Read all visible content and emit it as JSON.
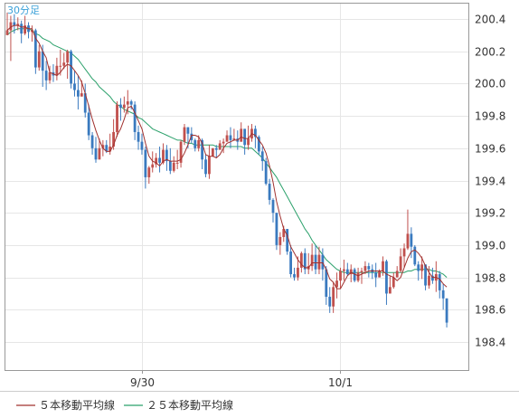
{
  "timeframe_label": "30分足",
  "colors": {
    "up": "#c0504d",
    "down": "#3a7abf",
    "ma5": "#a0312f",
    "ma25": "#2aa06a",
    "grid": "#e6e6e6",
    "frame": "#999999",
    "timeframe": "#3aa0d8"
  },
  "legend": [
    {
      "label": "５本移動平均線",
      "color": "#a0312f"
    },
    {
      "label": "２５本移動平均線",
      "color": "#2aa06a"
    }
  ],
  "chart_data": {
    "type": "candlestick",
    "y_axis": {
      "position": "right",
      "ticks": [
        "200.4",
        "200.2",
        "200.0",
        "199.8",
        "199.6",
        "199.4",
        "199.2",
        "199.0",
        "198.8",
        "198.6",
        "198.4"
      ],
      "range": [
        198.28,
        200.48
      ]
    },
    "x_axis": {
      "ticks": [
        {
          "label": "9/30",
          "bar_index": 38
        },
        {
          "label": "10/1",
          "bar_index": 94
        }
      ]
    },
    "grid": true,
    "legend_position": "bottom-left",
    "bar_count": 130,
    "candles": [
      [
        200.3,
        200.33,
        200.44,
        200.31
      ],
      [
        200.33,
        200.38,
        200.42,
        200.14
      ],
      [
        200.38,
        200.36,
        200.43,
        200.31
      ],
      [
        200.36,
        200.37,
        200.41,
        200.33
      ],
      [
        200.37,
        200.31,
        200.39,
        200.25
      ],
      [
        200.31,
        200.36,
        200.42,
        200.3
      ],
      [
        200.36,
        200.32,
        200.38,
        200.28
      ],
      [
        200.32,
        200.33,
        200.36,
        200.26
      ],
      [
        200.33,
        200.1,
        200.34,
        200.06
      ],
      [
        200.1,
        200.2,
        200.24,
        200.08
      ],
      [
        200.2,
        200.08,
        200.24,
        199.98
      ],
      [
        200.08,
        200.02,
        200.14,
        199.96
      ],
      [
        200.02,
        200.07,
        200.11,
        200.0
      ],
      [
        200.07,
        200.05,
        200.12,
        200.01
      ],
      [
        200.05,
        200.11,
        200.16,
        200.02
      ],
      [
        200.11,
        200.11,
        200.21,
        200.05
      ],
      [
        200.11,
        200.13,
        200.19,
        200.09
      ],
      [
        200.13,
        200.2,
        200.21,
        200.03
      ],
      [
        200.2,
        200.0,
        200.21,
        199.97
      ],
      [
        200.0,
        199.96,
        200.08,
        199.92
      ],
      [
        199.96,
        199.92,
        200.05,
        199.84
      ],
      [
        199.92,
        199.94,
        200.02,
        199.92
      ],
      [
        199.94,
        199.82,
        200.0,
        199.79
      ],
      [
        199.82,
        199.68,
        199.87,
        199.65
      ],
      [
        199.68,
        199.6,
        199.7,
        199.56
      ],
      [
        199.6,
        199.53,
        199.67,
        199.51
      ],
      [
        199.53,
        199.6,
        199.66,
        199.53
      ],
      [
        199.6,
        199.62,
        199.65,
        199.55
      ],
      [
        199.62,
        199.58,
        199.65,
        199.57
      ],
      [
        199.58,
        199.61,
        199.69,
        199.56
      ],
      [
        199.61,
        199.7,
        199.78,
        199.59
      ],
      [
        199.7,
        199.87,
        199.89,
        199.67
      ],
      [
        199.87,
        199.85,
        199.91,
        199.77
      ],
      [
        199.85,
        199.87,
        199.92,
        199.82
      ],
      [
        199.87,
        199.89,
        199.96,
        199.81
      ],
      [
        199.89,
        199.87,
        199.9,
        199.84
      ],
      [
        199.87,
        199.7,
        199.89,
        199.65
      ],
      [
        199.7,
        199.64,
        199.74,
        199.59
      ],
      [
        199.64,
        199.59,
        199.69,
        199.56
      ],
      [
        199.59,
        199.42,
        199.61,
        199.35
      ],
      [
        199.42,
        199.48,
        199.49,
        199.38
      ],
      [
        199.48,
        199.5,
        199.58,
        199.45
      ],
      [
        199.5,
        199.54,
        199.57,
        199.48
      ],
      [
        199.54,
        199.51,
        199.61,
        199.45
      ],
      [
        199.51,
        199.59,
        199.63,
        199.5
      ],
      [
        199.59,
        199.52,
        199.62,
        199.46
      ],
      [
        199.52,
        199.46,
        199.6,
        199.44
      ],
      [
        199.46,
        199.51,
        199.55,
        199.45
      ],
      [
        199.51,
        199.51,
        199.59,
        199.47
      ],
      [
        199.51,
        199.64,
        199.65,
        199.48
      ],
      [
        199.64,
        199.73,
        199.75,
        199.62
      ],
      [
        199.73,
        199.69,
        199.73,
        199.6
      ],
      [
        199.69,
        199.65,
        199.73,
        199.63
      ],
      [
        199.65,
        199.6,
        199.66,
        199.58
      ],
      [
        199.6,
        199.65,
        199.68,
        199.58
      ],
      [
        199.65,
        199.53,
        199.66,
        199.47
      ],
      [
        199.53,
        199.44,
        199.56,
        199.42
      ],
      [
        199.44,
        199.55,
        199.62,
        199.41
      ],
      [
        199.55,
        199.6,
        199.6,
        199.55
      ],
      [
        199.6,
        199.59,
        199.62,
        199.54
      ],
      [
        199.59,
        199.63,
        199.65,
        199.59
      ],
      [
        199.63,
        199.64,
        199.66,
        199.57
      ],
      [
        199.64,
        199.68,
        199.71,
        199.64
      ],
      [
        199.68,
        199.65,
        199.73,
        199.6
      ],
      [
        199.65,
        199.66,
        199.72,
        199.65
      ],
      [
        199.66,
        199.64,
        199.71,
        199.59
      ],
      [
        199.64,
        199.72,
        199.76,
        199.64
      ],
      [
        199.72,
        199.62,
        199.72,
        199.56
      ],
      [
        199.62,
        199.66,
        199.74,
        199.59
      ],
      [
        199.66,
        199.72,
        199.75,
        199.64
      ],
      [
        199.72,
        199.67,
        199.74,
        199.6
      ],
      [
        199.67,
        199.58,
        199.68,
        199.56
      ],
      [
        199.58,
        199.52,
        199.61,
        199.46
      ],
      [
        199.52,
        199.38,
        199.54,
        199.37
      ],
      [
        199.38,
        199.28,
        199.41,
        199.25
      ],
      [
        199.28,
        199.2,
        199.29,
        199.14
      ],
      [
        199.2,
        199.0,
        199.2,
        198.97
      ],
      [
        199.0,
        199.05,
        199.08,
        198.94
      ],
      [
        199.05,
        199.1,
        199.12,
        199.02
      ],
      [
        199.1,
        198.96,
        199.1,
        198.94
      ],
      [
        198.96,
        198.82,
        199.0,
        198.8
      ],
      [
        198.82,
        198.8,
        198.86,
        198.78
      ],
      [
        198.8,
        198.86,
        198.93,
        198.78
      ],
      [
        198.86,
        198.95,
        198.96,
        198.83
      ],
      [
        198.95,
        198.85,
        198.98,
        198.82
      ],
      [
        198.85,
        198.87,
        198.95,
        198.82
      ],
      [
        198.87,
        198.94,
        199.01,
        198.84
      ],
      [
        198.94,
        198.85,
        199.0,
        198.82
      ],
      [
        198.85,
        198.94,
        198.99,
        198.82
      ],
      [
        198.94,
        198.85,
        198.98,
        198.78
      ],
      [
        198.85,
        198.68,
        198.87,
        198.63
      ],
      [
        198.68,
        198.62,
        198.74,
        198.58
      ],
      [
        198.62,
        198.74,
        198.77,
        198.58
      ],
      [
        198.74,
        198.78,
        198.83,
        198.67
      ],
      [
        198.78,
        198.84,
        198.86,
        198.73
      ],
      [
        198.84,
        198.85,
        198.91,
        198.78
      ],
      [
        198.85,
        198.82,
        198.89,
        198.81
      ],
      [
        198.82,
        198.85,
        198.88,
        198.77
      ],
      [
        198.85,
        198.78,
        198.86,
        198.77
      ],
      [
        198.78,
        198.83,
        198.86,
        198.77
      ],
      [
        198.83,
        198.84,
        198.86,
        198.76
      ],
      [
        198.84,
        198.87,
        198.9,
        198.82
      ],
      [
        198.87,
        198.85,
        198.89,
        198.8
      ],
      [
        198.85,
        198.83,
        198.88,
        198.79
      ],
      [
        198.83,
        198.8,
        198.89,
        198.74
      ],
      [
        198.8,
        198.84,
        198.85,
        198.8
      ],
      [
        198.84,
        198.9,
        198.93,
        198.81
      ],
      [
        198.9,
        198.7,
        198.91,
        198.63
      ],
      [
        198.7,
        198.74,
        198.81,
        198.7
      ],
      [
        198.74,
        198.8,
        198.83,
        198.73
      ],
      [
        198.8,
        198.84,
        198.87,
        198.8
      ],
      [
        198.84,
        198.93,
        198.98,
        198.83
      ],
      [
        198.93,
        198.98,
        199.01,
        198.86
      ],
      [
        198.98,
        199.07,
        199.22,
        198.97
      ],
      [
        199.07,
        198.99,
        199.11,
        198.92
      ],
      [
        198.99,
        198.88,
        199.0,
        198.87
      ],
      [
        198.88,
        198.84,
        198.9,
        198.78
      ],
      [
        198.84,
        198.88,
        198.93,
        198.79
      ],
      [
        198.88,
        198.75,
        198.88,
        198.72
      ],
      [
        198.75,
        198.81,
        198.87,
        198.73
      ],
      [
        198.81,
        198.78,
        198.86,
        198.76
      ],
      [
        198.78,
        198.82,
        198.9,
        198.71
      ],
      [
        198.82,
        198.72,
        198.84,
        198.67
      ],
      [
        198.72,
        198.67,
        198.76,
        198.6
      ],
      [
        198.67,
        198.52,
        198.67,
        198.49
      ]
    ],
    "ma5": [
      200.33,
      200.35,
      200.36,
      200.36,
      200.35,
      200.35,
      200.34,
      200.34,
      200.28,
      200.25,
      200.2,
      200.16,
      200.07,
      200.06,
      200.05,
      200.07,
      200.1,
      200.12,
      200.11,
      200.08,
      200.05,
      200.01,
      199.94,
      199.86,
      199.78,
      199.71,
      199.65,
      199.6,
      199.58,
      199.58,
      199.62,
      199.68,
      199.72,
      199.78,
      199.85,
      199.86,
      199.82,
      199.77,
      199.72,
      199.63,
      199.55,
      199.52,
      199.51,
      199.49,
      199.52,
      199.53,
      199.52,
      199.52,
      199.52,
      199.53,
      199.57,
      199.62,
      199.68,
      199.68,
      199.67,
      199.63,
      199.56,
      199.55,
      199.55,
      199.54,
      199.56,
      199.6,
      199.63,
      199.64,
      199.65,
      199.65,
      199.67,
      199.66,
      199.66,
      199.69,
      199.68,
      199.65,
      199.62,
      199.57,
      199.49,
      199.39,
      199.27,
      199.18,
      199.1,
      199.06,
      198.99,
      198.95,
      198.91,
      198.88,
      198.86,
      198.86,
      198.89,
      198.89,
      198.89,
      198.89,
      198.85,
      198.79,
      198.77,
      198.73,
      198.73,
      198.77,
      198.81,
      198.83,
      198.82,
      198.81,
      198.82,
      198.83,
      198.84,
      198.84,
      198.84,
      198.84,
      198.84,
      198.82,
      198.81,
      198.8,
      198.78,
      198.8,
      198.86,
      198.92,
      198.96,
      198.97,
      198.95,
      198.92,
      198.87,
      198.83,
      198.8,
      198.8,
      198.79,
      198.76,
      198.74
    ],
    "ma25": [
      200.3,
      200.32,
      200.33,
      200.34,
      200.34,
      200.34,
      200.34,
      200.33,
      200.31,
      200.3,
      200.28,
      200.27,
      200.26,
      200.24,
      200.23,
      200.22,
      200.21,
      200.2,
      200.19,
      200.17,
      200.15,
      200.12,
      200.09,
      200.06,
      200.03,
      200.01,
      199.98,
      199.96,
      199.94,
      199.92,
      199.89,
      199.87,
      199.86,
      199.84,
      199.83,
      199.82,
      199.81,
      199.79,
      199.78,
      199.76,
      199.74,
      199.72,
      199.71,
      199.7,
      199.69,
      199.68,
      199.67,
      199.66,
      199.65,
      199.65,
      199.64,
      199.63,
      199.63,
      199.62,
      199.62,
      199.62,
      199.62,
      199.62,
      199.62,
      199.61,
      199.61,
      199.61,
      199.61,
      199.61,
      199.61,
      199.61,
      199.61,
      199.6,
      199.6,
      199.6,
      199.58,
      199.56,
      199.54,
      199.51,
      199.48,
      199.45,
      199.42,
      199.38,
      199.34,
      199.3,
      199.26,
      199.22,
      199.18,
      199.14,
      199.1,
      199.07,
      199.03,
      199.0,
      198.97,
      198.94,
      198.91,
      198.89,
      198.87,
      198.85,
      198.84,
      198.83,
      198.83,
      198.83,
      198.83,
      198.83,
      198.83,
      198.83,
      198.83,
      198.83,
      198.83,
      198.83,
      198.83,
      198.83,
      198.83,
      198.83,
      198.83,
      198.83,
      198.83,
      198.84,
      198.84,
      198.85,
      198.85,
      198.85,
      198.85,
      198.85,
      198.84,
      198.84,
      198.83,
      198.82,
      198.8
    ]
  }
}
